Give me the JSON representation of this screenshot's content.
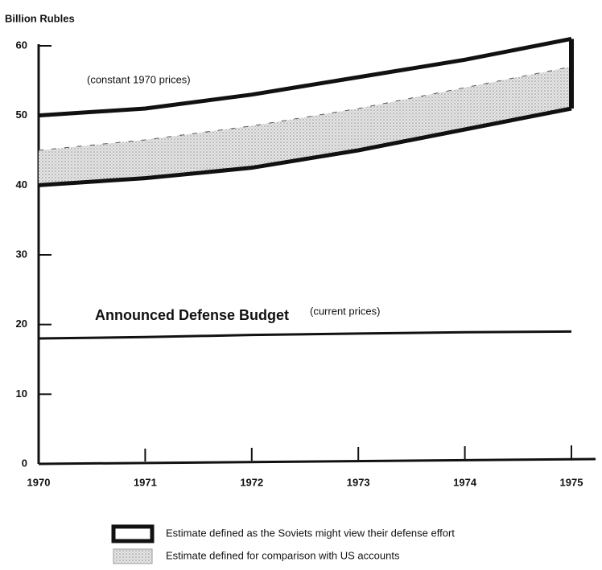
{
  "chart_data": {
    "type": "band",
    "y_label": "Billion Rubles",
    "annotation": "(constant 1970 prices)",
    "categories": [
      "1970",
      "1971",
      "1972",
      "1973",
      "1974",
      "1975"
    ],
    "ylim": [
      0,
      60
    ],
    "yticks": [
      0,
      10,
      20,
      30,
      40,
      50,
      60
    ],
    "series": [
      {
        "name": "Estimate defined as the Soviets might view their defense effort",
        "color": "#111111",
        "high": [
          50,
          51,
          53,
          55.5,
          58,
          61
        ],
        "low": [
          40,
          41,
          42.5,
          45,
          48,
          51
        ]
      },
      {
        "name": "Estimate defined for comparison with US accounts",
        "color": "#c8c8c8",
        "high": [
          45,
          46.5,
          48.5,
          51,
          54,
          57
        ],
        "low": [
          40,
          41,
          42.5,
          45,
          48,
          51
        ]
      }
    ],
    "budget": {
      "label": "Announced Defense Budget",
      "note": "(current prices)",
      "color": "#111111",
      "values": [
        18,
        18.2,
        18.5,
        18.7,
        18.9,
        19
      ]
    }
  }
}
